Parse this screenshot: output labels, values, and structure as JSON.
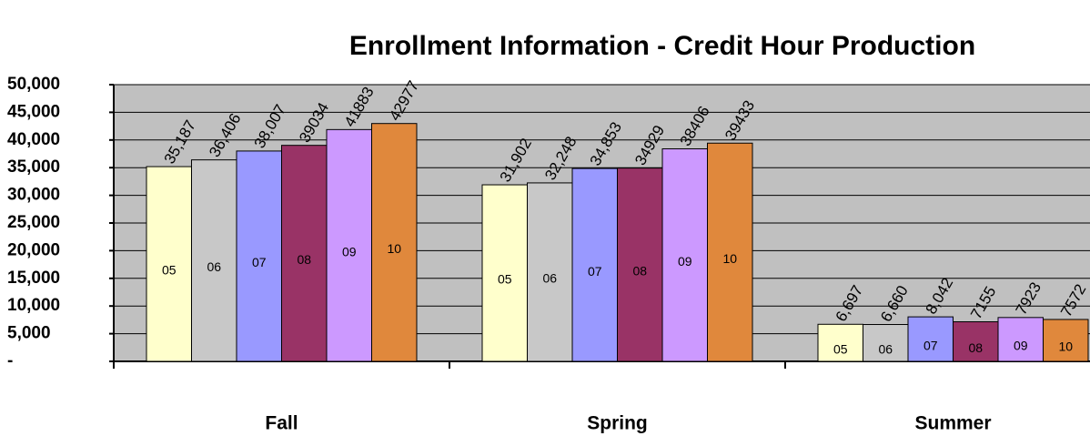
{
  "chart_data": {
    "type": "bar",
    "title": "Enrollment Information - Credit Hour Production",
    "categories": [
      "Fall",
      "Spring",
      "Summer"
    ],
    "series": [
      {
        "name": "05",
        "color": "#ffffcc",
        "values": [
          35187,
          31902,
          6697
        ],
        "value_labels": [
          "35,187",
          "31,902",
          "6,697"
        ]
      },
      {
        "name": "06",
        "color": "#c8c8c8",
        "values": [
          36406,
          32248,
          6660
        ],
        "value_labels": [
          "36,406",
          "32,248",
          "6,660"
        ]
      },
      {
        "name": "07",
        "color": "#9999ff",
        "values": [
          38007,
          34853,
          8042
        ],
        "value_labels": [
          "38,007",
          "34,853",
          "8,042"
        ]
      },
      {
        "name": "08",
        "color": "#993366",
        "values": [
          39034,
          34929,
          7155
        ],
        "value_labels": [
          "39034",
          "34929",
          "7155"
        ]
      },
      {
        "name": "09",
        "color": "#cc99ff",
        "values": [
          41883,
          38406,
          7923
        ],
        "value_labels": [
          "41883",
          "38406",
          "7923"
        ]
      },
      {
        "name": "10",
        "color": "#e0883c",
        "values": [
          42977,
          39433,
          7572
        ],
        "value_labels": [
          "42977",
          "39433",
          "7572"
        ]
      }
    ],
    "ylim": [
      0,
      50000
    ],
    "yticks": [
      {
        "value": 0,
        "label": "-"
      },
      {
        "value": 5000,
        "label": "5,000"
      },
      {
        "value": 10000,
        "label": "10,000"
      },
      {
        "value": 15000,
        "label": "15,000"
      },
      {
        "value": 20000,
        "label": "20,000"
      },
      {
        "value": 25000,
        "label": "25,000"
      },
      {
        "value": 30000,
        "label": "30,000"
      },
      {
        "value": 35000,
        "label": "35,000"
      },
      {
        "value": 40000,
        "label": "40,000"
      },
      {
        "value": 45000,
        "label": "45,000"
      },
      {
        "value": 50000,
        "label": "50,000"
      }
    ],
    "grid": true
  }
}
